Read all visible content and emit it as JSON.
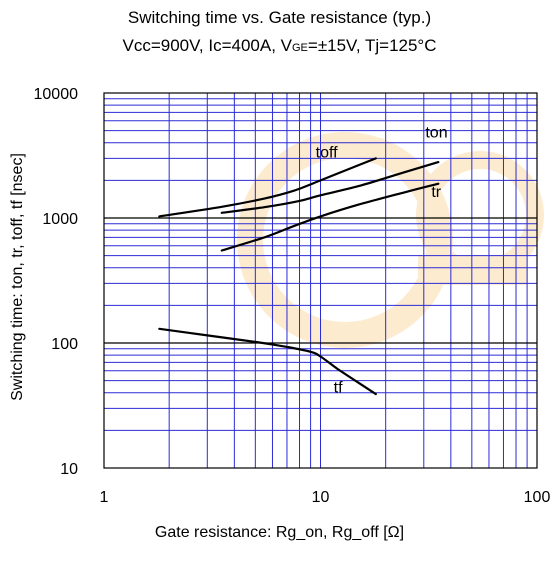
{
  "chart_data": {
    "type": "line",
    "title_line1": "Switching time vs. Gate resistance (typ.)",
    "title_line2_parts": [
      "Vcc=900V, Ic=400A, V",
      "GE",
      "=±15V, Tj=125°C"
    ],
    "xlabel": "Gate resistance: Rg_on, Rg_off [Ω]",
    "ylabel": "Switching time:  ton, tr, toff, tf  [nsec]",
    "x_scale": "log",
    "y_scale": "log",
    "xlim": [
      1,
      100
    ],
    "ylim": [
      10,
      10000
    ],
    "x_ticks": [
      1,
      10,
      100
    ],
    "x_tick_labels": [
      "1",
      "10",
      "100"
    ],
    "y_ticks": [
      10,
      100,
      1000,
      10000
    ],
    "y_tick_labels": [
      "10",
      "100",
      "1000",
      "10000"
    ],
    "grid": true,
    "grid_color": "#2b2bd6",
    "line_color": "#000000",
    "series": [
      {
        "name": "toff",
        "x": [
          1.8,
          3.5,
          5.5,
          7.5,
          10,
          13,
          18
        ],
        "y": [
          1030,
          1230,
          1430,
          1650,
          2000,
          2400,
          3000
        ]
      },
      {
        "name": "ton",
        "x": [
          3.5,
          5.5,
          8,
          10,
          15,
          25,
          35
        ],
        "y": [
          1100,
          1220,
          1370,
          1520,
          1800,
          2350,
          2800
        ]
      },
      {
        "name": "tr",
        "x": [
          3.5,
          5.5,
          7.5,
          10,
          15,
          25,
          35
        ],
        "y": [
          550,
          700,
          860,
          1030,
          1280,
          1620,
          1880
        ]
      },
      {
        "name": "tf",
        "x": [
          1.8,
          3,
          5,
          7,
          9,
          10,
          12,
          15,
          18
        ],
        "y": [
          130,
          115,
          102,
          93,
          85,
          78,
          62,
          48,
          39
        ]
      }
    ],
    "curve_labels": [
      {
        "series": "toff",
        "x": 9.5,
        "y": 3050
      },
      {
        "series": "ton",
        "x": 30.5,
        "y": 4400
      },
      {
        "series": "tr",
        "x": 32.5,
        "y": 1470
      },
      {
        "series": "tf",
        "x": 11.5,
        "y": 40
      }
    ]
  }
}
